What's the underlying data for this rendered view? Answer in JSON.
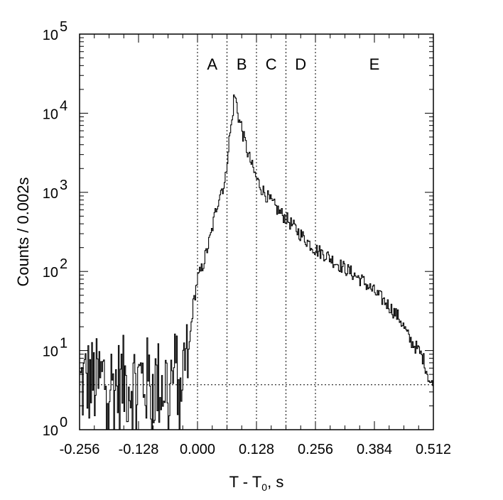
{
  "chart_data": {
    "type": "line",
    "title": "",
    "xlabel_main": "T - T",
    "xlabel_sub": "0",
    "xlabel_tail": ", s",
    "ylabel": "Counts / 0.002s",
    "xlim": [
      -0.256,
      0.512
    ],
    "ylim": [
      1,
      100000
    ],
    "yscale": "log",
    "grid": false,
    "x_ticks": [
      -0.256,
      -0.128,
      0.0,
      0.128,
      0.256,
      0.384,
      0.512
    ],
    "x_tick_labels": [
      "-0.256",
      "-0.128",
      "0.000",
      "0.128",
      "0.256",
      "0.384",
      "0.512"
    ],
    "y_ticks": [
      1,
      10,
      100,
      1000,
      10000,
      100000
    ],
    "y_tick_labels": [
      {
        "base": "10",
        "exp": "0"
      },
      {
        "base": "10",
        "exp": "1"
      },
      {
        "base": "10",
        "exp": "2"
      },
      {
        "base": "10",
        "exp": "3"
      },
      {
        "base": "10",
        "exp": "4"
      },
      {
        "base": "10",
        "exp": "5"
      }
    ],
    "region_boundaries": [
      0.0,
      0.064,
      0.128,
      0.192,
      0.256
    ],
    "regions": [
      {
        "label": "A",
        "x": 0.032
      },
      {
        "label": "B",
        "x": 0.096
      },
      {
        "label": "C",
        "x": 0.16
      },
      {
        "label": "D",
        "x": 0.224
      },
      {
        "label": "E",
        "x": 0.384
      }
    ],
    "background_level": 3.7,
    "series": [
      {
        "x": [
          -0.256,
          -0.24,
          -0.22,
          -0.2,
          -0.18,
          -0.16,
          -0.14,
          -0.12,
          -0.1,
          -0.08,
          -0.06,
          -0.05,
          -0.04,
          -0.03,
          -0.02,
          -0.01,
          0.0,
          0.01,
          0.02,
          0.03,
          0.04,
          0.05,
          0.055,
          0.06,
          0.065,
          0.07,
          0.075,
          0.08,
          0.085,
          0.09,
          0.095,
          0.1,
          0.105,
          0.11,
          0.115,
          0.12,
          0.128,
          0.14,
          0.16,
          0.18,
          0.192,
          0.21,
          0.23,
          0.256,
          0.28,
          0.3,
          0.33,
          0.36,
          0.384,
          0.41,
          0.44,
          0.46,
          0.48,
          0.49,
          0.5,
          0.505,
          0.512
        ],
        "y": [
          3.5,
          4.2,
          3.8,
          4.5,
          3.6,
          4.0,
          3.9,
          4.3,
          3.7,
          3.8,
          4.2,
          4.8,
          5.8,
          5.5,
          8,
          35,
          80,
          110,
          180,
          300,
          600,
          1050,
          1150,
          1300,
          2800,
          5200,
          8000,
          17500,
          13000,
          8200,
          7000,
          5000,
          4000,
          3000,
          2500,
          2000,
          1500,
          1100,
          750,
          550,
          470,
          360,
          270,
          190,
          160,
          130,
          100,
          75,
          55,
          40,
          25,
          14,
          10,
          8,
          5,
          4,
          3.5
        ],
        "noisy_before": 0.002
      }
    ]
  }
}
